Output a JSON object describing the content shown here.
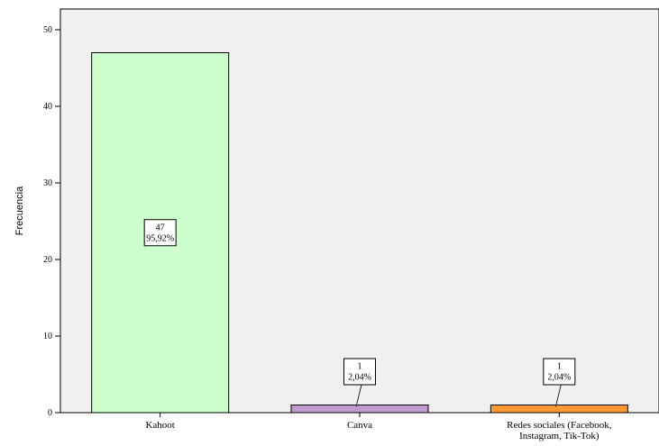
{
  "chart_data": {
    "type": "bar",
    "categories": [
      [
        "Kahoot"
      ],
      [
        "Canva"
      ],
      [
        "Redes sociales (Facebook,",
        "Instagram, Tik-Tok)"
      ]
    ],
    "values": [
      47,
      1,
      1
    ],
    "data_labels": [
      [
        "47",
        "95,92%"
      ],
      [
        "1",
        "2,04%"
      ],
      [
        "1",
        "2,04%"
      ]
    ],
    "bar_colors": [
      "#ccffcc",
      "#c39bd3",
      "#ff9933"
    ],
    "ylabel": "Frecuencia",
    "ylim": [
      0,
      50
    ],
    "yticks": [
      0,
      10,
      20,
      30,
      40,
      50
    ],
    "grid": false,
    "plot_background": "#f0f0f0"
  }
}
